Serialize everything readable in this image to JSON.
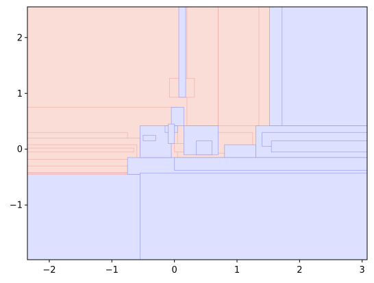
{
  "chart_data": {
    "type": "area",
    "title": "",
    "xlabel": "",
    "ylabel": "",
    "xlim": [
      -2.35,
      3.08
    ],
    "ylim": [
      -1.98,
      2.55
    ],
    "grid": false,
    "legend": "none",
    "xticks": [
      {
        "value": -2,
        "label": "−2"
      },
      {
        "value": -1,
        "label": "−1"
      },
      {
        "value": 0,
        "label": "0"
      },
      {
        "value": 1,
        "label": "1"
      },
      {
        "value": 2,
        "label": "2"
      },
      {
        "value": 3,
        "label": "3"
      }
    ],
    "yticks": [
      {
        "value": -1,
        "label": "−1"
      },
      {
        "value": 0,
        "label": "0"
      },
      {
        "value": 1,
        "label": "1"
      },
      {
        "value": 2,
        "label": "2"
      }
    ],
    "colors": {
      "class_a_fill": "#dde0ff",
      "class_a_edge": "#7b82f5",
      "class_b_fill": "#fbddd8",
      "class_b_edge": "#f29a96"
    },
    "regions": [
      {
        "class": "a",
        "x": [
          -2.35,
          3.08
        ],
        "y": [
          -1.98,
          2.55
        ]
      },
      {
        "class": "b",
        "x": [
          -2.35,
          1.6
        ],
        "y": [
          -0.45,
          2.55
        ]
      },
      {
        "class": "b",
        "x": [
          -2.35,
          0.05
        ],
        "y": [
          -0.43,
          0.75
        ]
      },
      {
        "class": "b",
        "x": [
          -2.35,
          -0.75
        ],
        "y": [
          -0.42,
          0.3
        ]
      },
      {
        "class": "b",
        "x": [
          -2.35,
          -0.55
        ],
        "y": [
          -0.3,
          0.2
        ]
      },
      {
        "class": "b",
        "x": [
          -2.35,
          -0.6
        ],
        "y": [
          -0.18,
          0.08
        ]
      },
      {
        "class": "b",
        "x": [
          -2.35,
          -0.65
        ],
        "y": [
          -0.05,
          0.02
        ]
      },
      {
        "class": "b",
        "x": [
          0.2,
          0.7
        ],
        "y": [
          0.42,
          2.55
        ]
      },
      {
        "class": "b",
        "x": [
          0.7,
          1.35
        ],
        "y": [
          0.42,
          2.55
        ]
      },
      {
        "class": "b",
        "x": [
          -0.08,
          0.32
        ],
        "y": [
          0.93,
          1.27
        ]
      },
      {
        "class": "b",
        "x": [
          0.55,
          1.25
        ],
        "y": [
          -0.07,
          0.3
        ]
      },
      {
        "class": "b",
        "x": [
          0.0,
          0.2
        ],
        "y": [
          -0.05,
          0.1
        ]
      },
      {
        "class": "a",
        "x": [
          1.6,
          3.08
        ],
        "y": [
          0.42,
          2.55
        ]
      },
      {
        "class": "a",
        "x": [
          1.52,
          1.72
        ],
        "y": [
          0.42,
          2.55
        ]
      },
      {
        "class": "a",
        "x": [
          0.07,
          0.18
        ],
        "y": [
          0.93,
          2.55
        ]
      },
      {
        "class": "a",
        "x": [
          -0.75,
          3.08
        ],
        "y": [
          -0.45,
          -0.15
        ]
      },
      {
        "class": "a",
        "x": [
          -0.55,
          3.08
        ],
        "y": [
          -1.98,
          -0.43
        ]
      },
      {
        "class": "a",
        "x": [
          -0.55,
          -0.05
        ],
        "y": [
          -0.15,
          0.42
        ]
      },
      {
        "class": "a",
        "x": [
          -0.05,
          0.15
        ],
        "y": [
          0.42,
          0.75
        ]
      },
      {
        "class": "a",
        "x": [
          -0.15,
          0.05
        ],
        "y": [
          0.3,
          0.42
        ]
      },
      {
        "class": "a",
        "x": [
          0.15,
          0.7
        ],
        "y": [
          -0.1,
          0.42
        ]
      },
      {
        "class": "a",
        "x": [
          0.35,
          0.6
        ],
        "y": [
          -0.1,
          0.15
        ]
      },
      {
        "class": "a",
        "x": [
          0.8,
          1.3
        ],
        "y": [
          -0.15,
          0.08
        ]
      },
      {
        "class": "a",
        "x": [
          1.3,
          3.08
        ],
        "y": [
          -0.15,
          0.42
        ]
      },
      {
        "class": "a",
        "x": [
          1.4,
          3.08
        ],
        "y": [
          0.05,
          0.3
        ]
      },
      {
        "class": "a",
        "x": [
          1.55,
          3.08
        ],
        "y": [
          -0.05,
          0.15
        ]
      },
      {
        "class": "a",
        "x": [
          -0.1,
          0.0
        ],
        "y": [
          0.1,
          0.45
        ]
      },
      {
        "class": "a",
        "x": [
          -0.5,
          -0.3
        ],
        "y": [
          0.15,
          0.25
        ]
      },
      {
        "class": "a",
        "x": [
          0.0,
          3.08
        ],
        "y": [
          -0.38,
          -0.15
        ]
      }
    ]
  }
}
